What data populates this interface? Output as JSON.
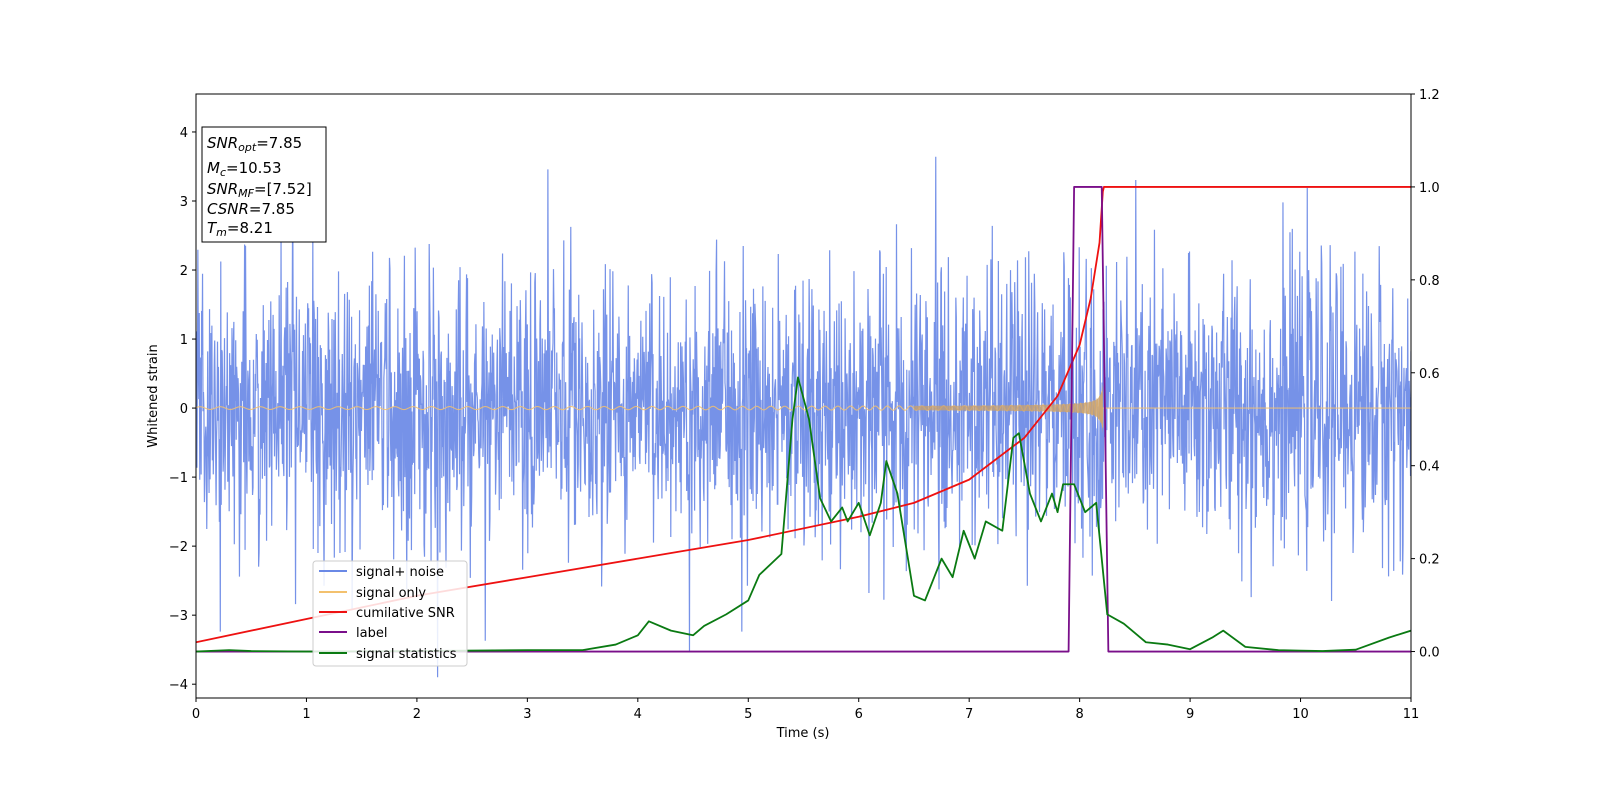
{
  "chart_data": {
    "type": "line",
    "title": "",
    "xlabel": "Time (s)",
    "ylabel_left": "Whitened strain",
    "ylabel_right": "",
    "xlim": [
      0,
      11
    ],
    "ylim_left": [
      -4.2,
      4.55
    ],
    "ylim_right": [
      -0.1,
      1.2
    ],
    "x_ticks": [
      "0",
      "1",
      "2",
      "3",
      "4",
      "5",
      "6",
      "7",
      "8",
      "9",
      "10",
      "11"
    ],
    "y_left_ticks": [
      "−4",
      "−3",
      "−2",
      "−1",
      "0",
      "1",
      "2",
      "3",
      "4"
    ],
    "y_left_tick_values": [
      -4,
      -3,
      -2,
      -1,
      0,
      1,
      2,
      3,
      4
    ],
    "y_right_ticks": [
      "0.0",
      "0.2",
      "0.4",
      "0.6",
      "0.8",
      "1.0",
      "1.2"
    ],
    "y_right_tick_values": [
      0.0,
      0.2,
      0.4,
      0.6,
      0.8,
      1.0,
      1.2
    ],
    "legend_position": "lower-left",
    "series": [
      {
        "name": "signal+ noise",
        "color": "#6a89e6",
        "axis": "left",
        "kind": "noise",
        "sigma": 1.0,
        "seed": 7
      },
      {
        "name": "signal only",
        "color": "#f3c16e",
        "axis": "left",
        "kind": "chirp",
        "t_merger": 8.21
      },
      {
        "name": "cumilative SNR",
        "color": "#ee1111",
        "axis": "right",
        "kind": "line",
        "x": [
          0,
          1,
          2,
          3,
          4,
          5,
          6,
          6.5,
          7,
          7.5,
          7.8,
          8.0,
          8.1,
          8.18,
          8.21,
          8.22,
          11
        ],
        "values": [
          0.02,
          0.07,
          0.12,
          0.16,
          0.2,
          0.24,
          0.29,
          0.32,
          0.37,
          0.46,
          0.55,
          0.66,
          0.76,
          0.88,
          0.99,
          1.0,
          1.0
        ]
      },
      {
        "name": "label",
        "color": "#7a0f8a",
        "axis": "right",
        "kind": "line",
        "x": [
          0,
          7.9,
          7.95,
          8.2,
          8.26,
          11
        ],
        "values": [
          0,
          0,
          1,
          1,
          0,
          0
        ]
      },
      {
        "name": "signal statistics",
        "color": "#0a7a12",
        "axis": "right",
        "kind": "line",
        "x": [
          0,
          0.3,
          0.5,
          1,
          2,
          3,
          3.5,
          3.8,
          4.0,
          4.1,
          4.3,
          4.5,
          4.6,
          4.8,
          5.0,
          5.1,
          5.3,
          5.4,
          5.45,
          5.55,
          5.65,
          5.75,
          5.85,
          5.9,
          6.0,
          6.1,
          6.2,
          6.25,
          6.35,
          6.5,
          6.6,
          6.75,
          6.85,
          6.95,
          7.05,
          7.15,
          7.3,
          7.4,
          7.45,
          7.55,
          7.65,
          7.75,
          7.8,
          7.85,
          7.95,
          8.05,
          8.15,
          8.25,
          8.4,
          8.6,
          8.8,
          9.0,
          9.2,
          9.3,
          9.5,
          9.8,
          10.0,
          10.2,
          10.5,
          10.8,
          11.0
        ],
        "values": [
          0,
          0.003,
          0.001,
          0,
          0.001,
          0.003,
          0.003,
          0.015,
          0.035,
          0.065,
          0.045,
          0.035,
          0.055,
          0.08,
          0.11,
          0.165,
          0.21,
          0.5,
          0.59,
          0.5,
          0.33,
          0.28,
          0.31,
          0.28,
          0.32,
          0.25,
          0.32,
          0.41,
          0.34,
          0.12,
          0.11,
          0.2,
          0.16,
          0.26,
          0.2,
          0.28,
          0.26,
          0.46,
          0.47,
          0.34,
          0.28,
          0.34,
          0.3,
          0.36,
          0.36,
          0.3,
          0.32,
          0.08,
          0.06,
          0.02,
          0.015,
          0.005,
          0.03,
          0.045,
          0.01,
          0.003,
          0.002,
          0.001,
          0.004,
          0.03,
          0.045
        ]
      }
    ],
    "annotations": {
      "snr_opt": {
        "sym": "SNR",
        "sub": "opt",
        "value": "=7.85"
      },
      "mc": {
        "sym": "M",
        "sub": "c",
        "value": "=10.53"
      },
      "snr_mf": {
        "sym": "SNR",
        "sub": "MF",
        "value": "=[7.52]"
      },
      "csnr": {
        "sym": "CSNR",
        "value": "=7.85"
      },
      "tm": {
        "sym": "T",
        "sub": "m",
        "value": "=8.21"
      }
    }
  }
}
